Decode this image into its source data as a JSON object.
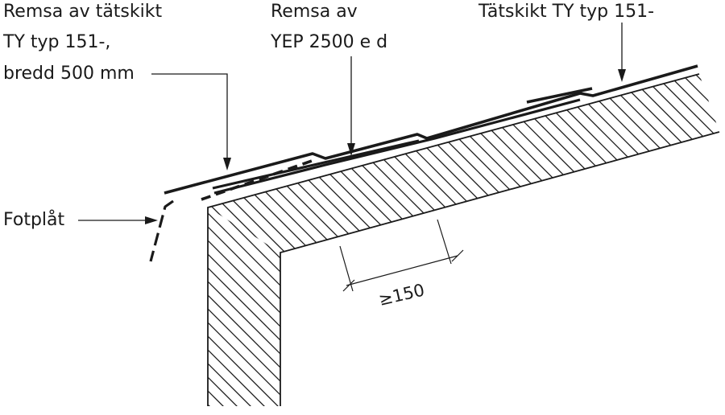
{
  "labels": {
    "strip_roofing": [
      "Remsa av tätskikt",
      "TY typ 151-,",
      "bredd 500 mm"
    ],
    "strip_yep": [
      "Remsa av",
      "YEP 2500 e d"
    ],
    "roofing": "Tätskikt TY typ 151-",
    "drip_edge": "Fotplåt",
    "dimension": "≥150"
  },
  "colors": {
    "line": "#1a1a1a",
    "background": "#ffffff"
  }
}
